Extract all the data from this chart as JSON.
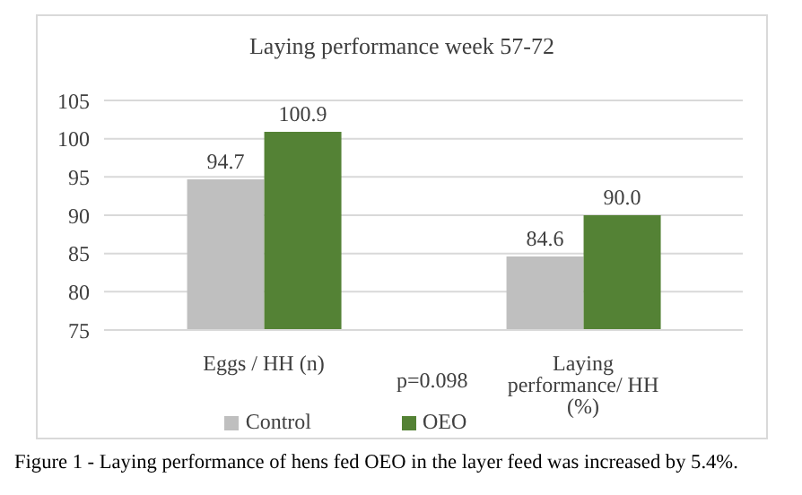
{
  "chart_data": {
    "type": "bar",
    "title": "Laying performance week 57-72",
    "categories": [
      "Eggs / HH (n)",
      "Laying performance/ HH (%)"
    ],
    "series": [
      {
        "name": "Control",
        "color": "#bfbfbf",
        "values": [
          94.7,
          84.6
        ],
        "value_labels": [
          "94.7",
          "84.6"
        ]
      },
      {
        "name": "OEO",
        "color": "#548235",
        "values": [
          100.9,
          90.0
        ],
        "value_labels": [
          "100.9",
          "90.0"
        ]
      }
    ],
    "ylim": [
      75,
      105
    ],
    "yticks": [
      75,
      80,
      85,
      90,
      95,
      100,
      105
    ],
    "grid": "y",
    "legend": "bottom",
    "annotations": [
      "p=0.098",
      "Figure 1 - Laying performance of hens fed OEO in the layer feed was increased by 5.4%."
    ]
  }
}
